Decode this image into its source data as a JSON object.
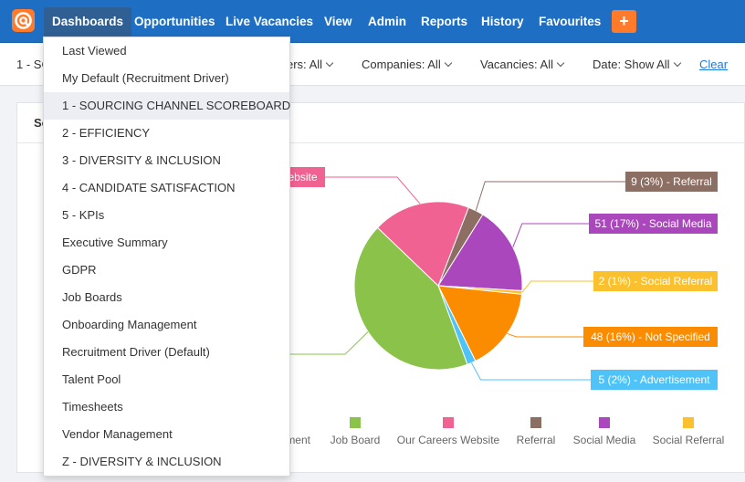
{
  "nav": {
    "items": [
      "Dashboards",
      "Opportunities",
      "Live Vacancies",
      "View",
      "Admin",
      "Reports",
      "History",
      "Favourites"
    ],
    "add_label": "+"
  },
  "filters": {
    "report": "1 - SC",
    "owners": "ers: All",
    "companies": "Companies: All",
    "vacancies": "Vacancies: All",
    "date": "Date: Show All",
    "clear": "Clear"
  },
  "card": {
    "title": "So"
  },
  "dropdown": {
    "items": [
      "Last Viewed",
      "My Default (Recruitment Driver)",
      "1 - SOURCING CHANNEL SCOREBOARD",
      "2 - EFFICIENCY",
      "3 - DIVERSITY & INCLUSION",
      "4 - CANDIDATE SATISFACTION",
      "5 - KPIs",
      "Executive Summary",
      "GDPR",
      "Job Boards",
      "Onboarding Management",
      "Recruitment Driver (Default)",
      "Talent Pool",
      "Timesheets",
      "Vendor Management",
      "Z - DIVERSITY & INCLUSION"
    ],
    "selected_index": 2
  },
  "chart_data": {
    "type": "pie",
    "slices": [
      {
        "label": "Referral",
        "value": 9,
        "pct": "3%",
        "color": "#8d6e63",
        "callout": "9 (3%) - Referral"
      },
      {
        "label": "Social Media",
        "value": 51,
        "pct": "17%",
        "color": "#ab47bc",
        "callout": "51 (17%) - Social Media"
      },
      {
        "label": "Social Referral",
        "value": 2,
        "pct": "1%",
        "color": "#fbc02d",
        "callout": "2 (1%) - Social Referral"
      },
      {
        "label": "Not Specified",
        "value": 48,
        "pct": "16%",
        "color": "#fb8c00",
        "callout": "48 (16%) - Not Specified"
      },
      {
        "label": "Advertisement",
        "value": 5,
        "pct": "2%",
        "color": "#4fc3f7",
        "callout": "5 (2%) - Advertisement"
      },
      {
        "label": "Job Board",
        "value": 128,
        "pct": "",
        "color": "#8bc34a",
        "callout": ""
      },
      {
        "label": "Our Careers Website",
        "value": 56,
        "pct": "",
        "color": "#f06292",
        "callout": "ebsite"
      }
    ],
    "legend": [
      "ment",
      "Job Board",
      "Our Careers Website",
      "Referral",
      "Social Media",
      "Social Referral"
    ],
    "legend_colors": [
      "",
      "#8bc34a",
      "#f06292",
      "#8d6e63",
      "#ab47bc",
      "#fbc02d"
    ]
  }
}
